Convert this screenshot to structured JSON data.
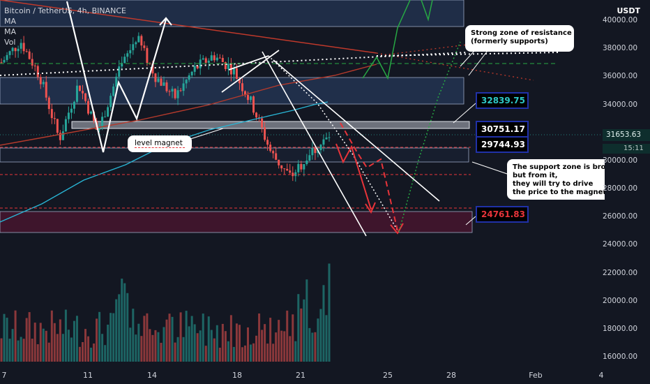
{
  "legend": {
    "title": "Bitcoin / TetherUS, 4h, BINANCE",
    "indicators": [
      "MA",
      "MA",
      "Vol"
    ]
  },
  "price_axis": {
    "unit": "USDT",
    "ticks": [
      "40000.00",
      "38000.00",
      "36000.00",
      "34000.00",
      "32000.00",
      "30000.00",
      "28000.00",
      "26000.00",
      "24000.00",
      "22000.00",
      "20000.00",
      "18000.00",
      "16000.00"
    ],
    "current_price": "31653.63",
    "countdown": "15:11"
  },
  "time_axis": {
    "ticks": [
      "7",
      "11",
      "14",
      "18",
      "21",
      "25",
      "28",
      "Feb",
      "4"
    ]
  },
  "annotations": {
    "resistance_note": [
      "Strong zone of resistance",
      "(formerly supports)"
    ],
    "support_note": [
      "The support zone is brok",
      "but from it,",
      "they will try to drive",
      "the price to the magneti"
    ],
    "magnet_label": "level magnet",
    "levels": [
      {
        "label": "32839.75",
        "color": "#2ec8c8"
      },
      {
        "label": "30751.17",
        "color": "#ffffff"
      },
      {
        "label": "29744.93",
        "color": "#ffffff"
      },
      {
        "label": "24761.83",
        "color": "#e8343a"
      }
    ]
  },
  "colors": {
    "background": "#131722",
    "bull": "#26a69a",
    "bear": "#ef5350",
    "ma_short": "#29b6d6",
    "trendline": "#b43a2c",
    "zone": "#2a3f66",
    "zone_red": "#4a1530",
    "forecast_green": "#27a844"
  },
  "chart_data": {
    "type": "candlestick",
    "symbol": "BTC/USDT",
    "interval": "4h",
    "exchange": "BINANCE",
    "x_labels": [
      "7",
      "11",
      "14",
      "18",
      "21",
      "25",
      "28",
      "Feb",
      "4"
    ],
    "ylim": [
      15500,
      41000
    ],
    "key_levels": [
      32839.75,
      30751.17,
      29744.93,
      24761.83
    ],
    "resistance_zone": [
      34000,
      35800
    ],
    "support_zone": [
      30000,
      30800
    ],
    "target_zone": [
      24800,
      26300
    ],
    "price_path": [
      37000,
      38500,
      36000,
      31500,
      35500,
      32000,
      36000,
      38800,
      36000,
      34500,
      36500,
      37500,
      36500,
      34000,
      30500,
      28800,
      30500,
      31653.63
    ],
    "projected_path": [
      31653.63,
      29000,
      29500,
      26500,
      27500,
      24800
    ]
  }
}
